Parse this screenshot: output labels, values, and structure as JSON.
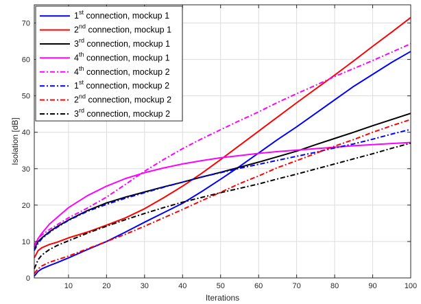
{
  "chart_data": {
    "type": "line",
    "xlabel": "Iterations",
    "ylabel": "Isolation [dB]",
    "xlim": [
      1,
      100
    ],
    "ylim": [
      0,
      75
    ],
    "xticks": [
      10,
      20,
      30,
      40,
      50,
      60,
      70,
      80,
      90,
      100
    ],
    "yticks": [
      0,
      10,
      20,
      30,
      40,
      50,
      60,
      70
    ],
    "grid": true,
    "legend_position": "top-left",
    "series": [
      {
        "name": "1st connection, mockup 1",
        "label_parts": [
          "1",
          "st",
          " connection, mockup 1"
        ],
        "color": "#0000FF",
        "dash": "solid",
        "x": [
          1,
          2,
          3,
          5,
          7,
          10,
          15,
          20,
          25,
          30,
          35,
          40,
          45,
          50,
          55,
          60,
          65,
          70,
          75,
          80,
          85,
          90,
          95,
          100
        ],
        "y": [
          0.5,
          1.8,
          2.5,
          3.4,
          4.2,
          5.5,
          7.8,
          10.0,
          12.6,
          15.3,
          17.9,
          20.5,
          23.7,
          27.1,
          30.6,
          34.3,
          38.0,
          41.5,
          45.2,
          48.9,
          52.6,
          55.9,
          59.2,
          62.2
        ]
      },
      {
        "name": "2nd connection, mockup 1",
        "label_parts": [
          "2",
          "nd",
          " connection, mockup 1"
        ],
        "color": "#FF0000",
        "dash": "solid",
        "x": [
          1,
          2,
          3,
          5,
          7,
          10,
          15,
          20,
          25,
          30,
          35,
          40,
          45,
          50,
          55,
          60,
          65,
          70,
          75,
          80,
          85,
          90,
          95,
          100
        ],
        "y": [
          5.5,
          7.5,
          8.3,
          9.2,
          9.8,
          11.0,
          12.6,
          14.5,
          16.5,
          19.0,
          22.0,
          25.2,
          28.7,
          32.5,
          36.4,
          40.3,
          44.2,
          48.1,
          51.9,
          55.7,
          59.6,
          63.6,
          67.5,
          71.5
        ]
      },
      {
        "name": "3rd connection, mockup 1",
        "label_parts": [
          "3",
          "rd",
          " connection, mockup 1"
        ],
        "color": "#000000",
        "dash": "solid",
        "x": [
          1,
          2,
          3,
          5,
          7,
          10,
          15,
          20,
          25,
          30,
          35,
          40,
          45,
          50,
          55,
          60,
          65,
          70,
          75,
          80,
          85,
          90,
          95,
          100
        ],
        "y": [
          8.0,
          10.0,
          11.0,
          12.7,
          14.1,
          15.9,
          18.5,
          20.6,
          22.2,
          23.6,
          25.0,
          26.3,
          27.7,
          29.0,
          30.4,
          31.8,
          33.3,
          34.8,
          36.6,
          38.3,
          40.0,
          41.8,
          43.5,
          45.2
        ]
      },
      {
        "name": "4th connection, mockup 1",
        "label_parts": [
          "4",
          "th",
          " connection, mockup 1"
        ],
        "color": "#FF00FF",
        "dash": "solid",
        "x": [
          1,
          2,
          3,
          5,
          7,
          10,
          15,
          20,
          25,
          30,
          35,
          40,
          45,
          50,
          55,
          60,
          65,
          70,
          75,
          80,
          85,
          90,
          95,
          100
        ],
        "y": [
          8.5,
          10.8,
          12.3,
          14.8,
          16.6,
          19.3,
          22.6,
          25.2,
          27.3,
          28.9,
          30.2,
          31.3,
          32.2,
          33.0,
          33.6,
          34.2,
          34.7,
          35.1,
          35.5,
          35.9,
          36.3,
          36.6,
          36.9,
          37.2
        ]
      },
      {
        "name": "4th connection, mockup 2",
        "label_parts": [
          "4",
          "th",
          " connection, mockup 2"
        ],
        "color": "#FF00FF",
        "dash": "dashdot",
        "x": [
          1,
          2,
          3,
          5,
          7,
          10,
          15,
          20,
          25,
          30,
          35,
          40,
          45,
          50,
          55,
          60,
          65,
          70,
          75,
          80,
          85,
          90,
          95,
          100
        ],
        "y": [
          9.0,
          10.8,
          11.8,
          13.3,
          14.6,
          16.5,
          19.2,
          22.2,
          25.7,
          29.3,
          32.5,
          35.5,
          38.2,
          40.7,
          43.2,
          45.6,
          48.2,
          50.6,
          52.9,
          55.3,
          57.5,
          59.7,
          62.0,
          64.3
        ]
      },
      {
        "name": "1st connection, mockup 2",
        "label_parts": [
          "1",
          "st",
          " connection, mockup 2"
        ],
        "color": "#0000FF",
        "dash": "dashdot",
        "x": [
          1,
          2,
          3,
          5,
          7,
          10,
          15,
          20,
          25,
          30,
          35,
          40,
          45,
          50,
          55,
          60,
          65,
          70,
          75,
          80,
          85,
          90,
          95,
          100
        ],
        "y": [
          7.5,
          9.5,
          10.8,
          12.5,
          13.9,
          15.8,
          18.3,
          20.2,
          21.9,
          23.4,
          24.9,
          26.3,
          27.7,
          28.9,
          30.1,
          31.2,
          32.3,
          33.4,
          34.5,
          35.7,
          36.8,
          38.1,
          39.5,
          40.8
        ]
      },
      {
        "name": "2nd connection, mockup 2",
        "label_parts": [
          "2",
          "nd",
          " connection, mockup 2"
        ],
        "color": "#FF0000",
        "dash": "dashdot",
        "x": [
          1,
          2,
          3,
          5,
          7,
          10,
          15,
          20,
          25,
          30,
          35,
          40,
          45,
          50,
          55,
          60,
          65,
          70,
          75,
          80,
          85,
          90,
          95,
          100
        ],
        "y": [
          1.2,
          2.5,
          3.3,
          4.3,
          5.0,
          6.0,
          8.0,
          10.0,
          12.0,
          14.2,
          16.5,
          18.8,
          21.2,
          23.5,
          25.9,
          28.0,
          30.3,
          32.2,
          34.2,
          36.2,
          38.0,
          40.0,
          41.8,
          43.5
        ]
      },
      {
        "name": "3rd connection, mockup 2",
        "label_parts": [
          "3",
          "rd",
          " connection, mockup 2"
        ],
        "color": "#000000",
        "dash": "dashdot",
        "x": [
          1,
          2,
          3,
          5,
          7,
          10,
          15,
          20,
          25,
          30,
          35,
          40,
          45,
          50,
          55,
          60,
          65,
          70,
          75,
          80,
          85,
          90,
          95,
          100
        ],
        "y": [
          2.5,
          5.0,
          6.3,
          7.8,
          8.9,
          10.2,
          12.3,
          14.2,
          16.0,
          17.7,
          19.3,
          20.8,
          22.1,
          23.4,
          24.6,
          25.8,
          27.2,
          28.5,
          29.9,
          31.3,
          32.7,
          34.1,
          35.6,
          37.0
        ]
      }
    ]
  }
}
